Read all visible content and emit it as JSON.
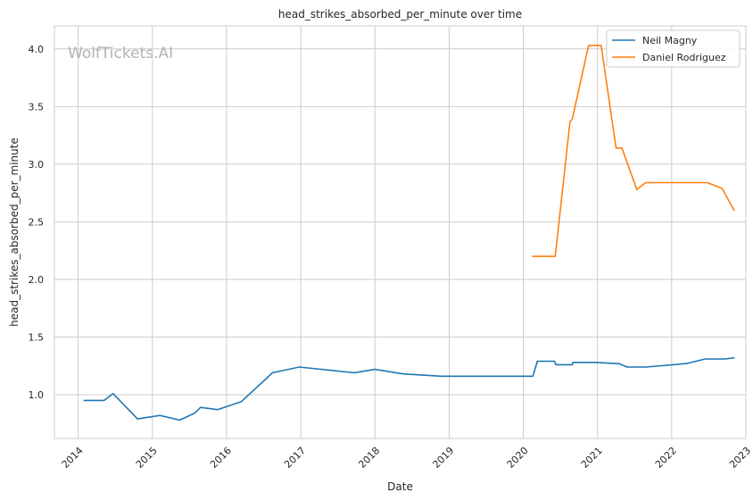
{
  "chart_data": {
    "type": "line",
    "title": "head_strikes_absorbed_per_minute over time",
    "xlabel": "Date",
    "ylabel": "head_strikes_absorbed_per_minute",
    "watermark": "WolfTickets.AI",
    "xlim": [
      2013.68,
      2023.0
    ],
    "ylim": [
      0.62,
      4.2
    ],
    "x_ticks": [
      2014,
      2015,
      2016,
      2017,
      2018,
      2019,
      2020,
      2021,
      2022,
      2023
    ],
    "x_tick_labels": [
      "2014",
      "2015",
      "2016",
      "2017",
      "2018",
      "2019",
      "2020",
      "2021",
      "2022",
      "2023"
    ],
    "y_ticks": [
      1.0,
      1.5,
      2.0,
      2.5,
      3.0,
      3.5,
      4.0
    ],
    "y_tick_labels": [
      "1.0",
      "1.5",
      "2.0",
      "2.5",
      "3.0",
      "3.5",
      "4.0"
    ],
    "grid": true,
    "legend_position": "top-right",
    "series": [
      {
        "name": "Neil Magny",
        "color": "#1f77b4",
        "x": [
          2014.08,
          2014.35,
          2014.47,
          2014.8,
          2015.1,
          2015.37,
          2015.57,
          2015.65,
          2015.88,
          2016.2,
          2016.62,
          2016.98,
          2017.72,
          2018.0,
          2018.38,
          2018.9,
          2019.5,
          2020.13,
          2020.19,
          2020.42,
          2020.44,
          2020.66,
          2020.67,
          2020.98,
          2021.25,
          2021.29,
          2021.4,
          2021.65,
          2022.2,
          2022.45,
          2022.72,
          2022.84
        ],
        "y": [
          0.95,
          0.95,
          1.01,
          0.79,
          0.82,
          0.78,
          0.84,
          0.89,
          0.87,
          0.94,
          1.19,
          1.24,
          1.19,
          1.22,
          1.18,
          1.16,
          1.16,
          1.16,
          1.29,
          1.29,
          1.26,
          1.26,
          1.28,
          1.28,
          1.27,
          1.27,
          1.24,
          1.24,
          1.27,
          1.31,
          1.31,
          1.32
        ]
      },
      {
        "name": "Daniel Rodriguez",
        "color": "#ff7f0e",
        "x": [
          2020.13,
          2020.43,
          2020.63,
          2020.66,
          2020.88,
          2021.05,
          2021.25,
          2021.33,
          2021.53,
          2021.65,
          2022.48,
          2022.68,
          2022.84
        ],
        "y": [
          2.2,
          2.2,
          3.37,
          3.39,
          4.03,
          4.03,
          3.14,
          3.14,
          2.78,
          2.84,
          2.84,
          2.79,
          2.6
        ]
      }
    ]
  }
}
